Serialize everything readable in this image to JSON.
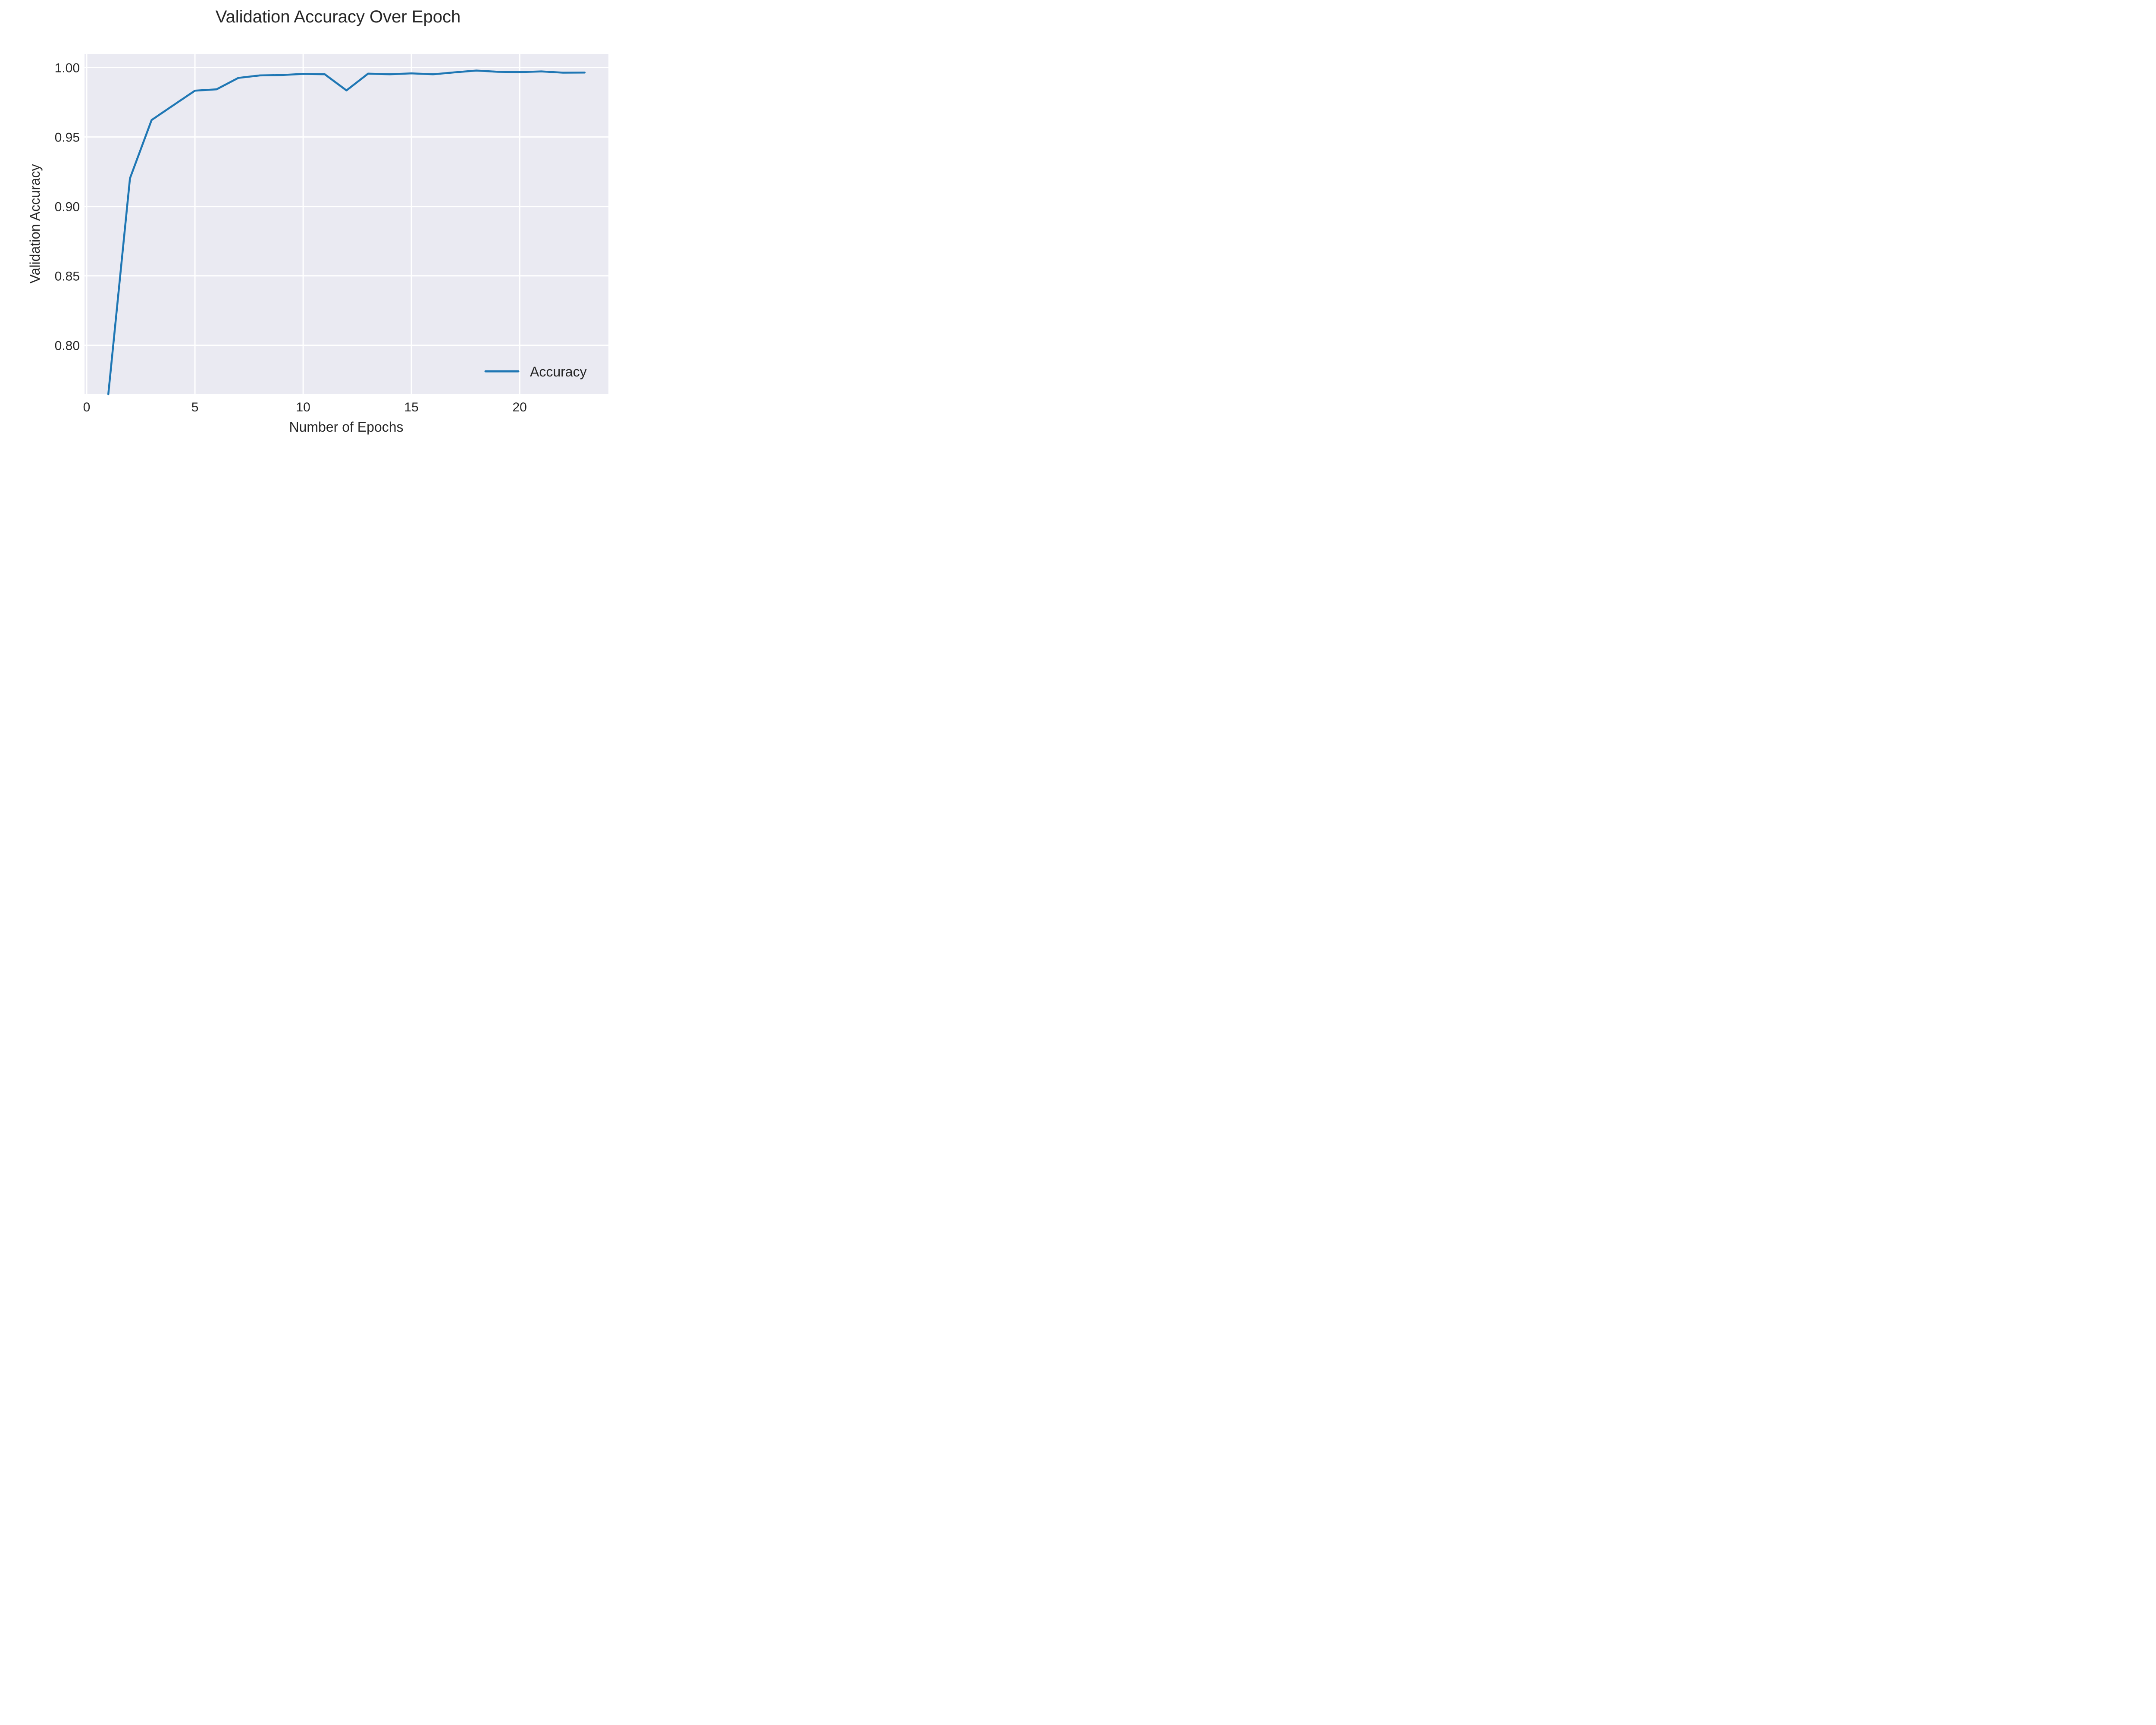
{
  "chart_data": {
    "type": "line",
    "title": "Validation Accuracy Over Epoch",
    "xlabel": "Number of Epochs",
    "ylabel": "Validation Accuracy",
    "xlim": [
      -0.1,
      24.1
    ],
    "ylim": [
      0.7648,
      1.0098
    ],
    "xticks": [
      0,
      5,
      10,
      15,
      20
    ],
    "xtick_labels": [
      "0",
      "5",
      "10",
      "15",
      "20"
    ],
    "yticks": [
      0.8,
      0.85,
      0.9,
      0.95,
      1.0
    ],
    "ytick_labels": [
      "0.80",
      "0.85",
      "0.90",
      "0.95",
      "1.00"
    ],
    "grid": true,
    "legend_position": "lower-right",
    "series": [
      {
        "name": "Accuracy",
        "color": "#1f77b4",
        "x": [
          1,
          2,
          3,
          4,
          5,
          6,
          7,
          8,
          9,
          10,
          11,
          12,
          13,
          14,
          15,
          16,
          17,
          18,
          19,
          20,
          21,
          22,
          23
        ],
        "values": [
          0.7648,
          0.9202,
          0.9622,
          0.9728,
          0.9833,
          0.9843,
          0.9925,
          0.9943,
          0.9946,
          0.9954,
          0.9951,
          0.9835,
          0.9956,
          0.9951,
          0.9958,
          0.9951,
          0.9965,
          0.9978,
          0.9969,
          0.9967,
          0.9972,
          0.9963,
          0.9964
        ]
      }
    ]
  }
}
